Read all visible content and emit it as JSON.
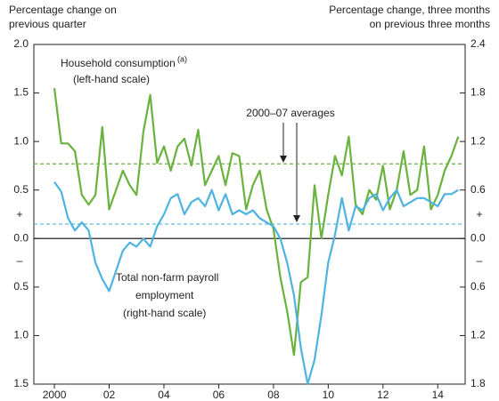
{
  "chart_data": {
    "type": "line",
    "y_axis_title": [
      "Percentage change on",
      "previous quarter"
    ],
    "y2_axis_title": [
      "Percentage change, three months",
      "on previous three months"
    ],
    "x": [
      2000,
      2000.25,
      2000.5,
      2000.75,
      2001,
      2001.25,
      2001.5,
      2001.75,
      2002,
      2002.25,
      2002.5,
      2002.75,
      2003,
      2003.25,
      2003.5,
      2003.75,
      2004,
      2004.25,
      2004.5,
      2004.75,
      2005,
      2005.25,
      2005.5,
      2005.75,
      2006,
      2006.25,
      2006.5,
      2006.75,
      2007,
      2007.25,
      2007.5,
      2007.75,
      2008,
      2008.25,
      2008.5,
      2008.75,
      2009,
      2009.25,
      2009.5,
      2009.75,
      2010,
      2010.25,
      2010.5,
      2010.75,
      2011,
      2011.25,
      2011.5,
      2011.75,
      2012,
      2012.25,
      2012.5,
      2012.75,
      2013,
      2013.25,
      2013.5,
      2013.75,
      2014,
      2014.25,
      2014.5,
      2014.75
    ],
    "series": [
      {
        "name": "Household consumption",
        "color": "#6ab23e",
        "axis": "y",
        "values": [
          1.55,
          0.98,
          0.98,
          0.9,
          0.45,
          0.35,
          0.45,
          1.15,
          0.3,
          0.5,
          0.7,
          0.55,
          0.45,
          1.1,
          1.48,
          0.78,
          0.95,
          0.7,
          0.95,
          1.03,
          0.75,
          1.12,
          0.55,
          0.7,
          0.85,
          0.55,
          0.88,
          0.85,
          0.3,
          0.55,
          0.7,
          0.3,
          0.1,
          -0.4,
          -0.75,
          -1.2,
          -0.45,
          -0.4,
          0.55,
          0.0,
          0.45,
          0.85,
          0.65,
          1.05,
          0.35,
          0.25,
          0.5,
          0.4,
          0.75,
          0.3,
          0.5,
          0.9,
          0.45,
          0.5,
          0.95,
          0.3,
          0.45,
          0.7,
          0.85,
          1.05
        ]
      },
      {
        "name": "Total non-farm payroll employment",
        "color": "#4eb3e0",
        "axis": "y2",
        "values": [
          0.7,
          0.58,
          0.25,
          0.1,
          0.2,
          0.1,
          -0.3,
          -0.5,
          -0.65,
          -0.4,
          -0.15,
          -0.05,
          -0.1,
          0.0,
          -0.1,
          0.15,
          0.3,
          0.5,
          0.55,
          0.3,
          0.45,
          0.5,
          0.4,
          0.6,
          0.35,
          0.55,
          0.3,
          0.35,
          0.3,
          0.35,
          0.25,
          0.2,
          0.15,
          0.0,
          -0.3,
          -0.7,
          -1.35,
          -1.8,
          -1.5,
          -0.95,
          -0.3,
          0.05,
          0.5,
          0.1,
          0.4,
          0.35,
          0.5,
          0.55,
          0.35,
          0.5,
          0.6,
          0.4,
          0.45,
          0.5,
          0.5,
          0.45,
          0.4,
          0.55,
          0.55,
          0.6
        ]
      }
    ],
    "reference_lines": [
      {
        "value": 0.77,
        "axis": "y",
        "color": "#6ab23e"
      },
      {
        "value": 0.18,
        "axis": "y2",
        "color": "#4eb3e0"
      }
    ],
    "xlim": [
      1999.25,
      2015
    ],
    "xticks": [
      {
        "value": 2000,
        "label": "2000"
      },
      {
        "value": 2002,
        "label": "02"
      },
      {
        "value": 2004,
        "label": "04"
      },
      {
        "value": 2006,
        "label": "06"
      },
      {
        "value": 2008,
        "label": "08"
      },
      {
        "value": 2010,
        "label": "10"
      },
      {
        "value": 2012,
        "label": "12"
      },
      {
        "value": 2014,
        "label": "14"
      }
    ],
    "ylim": [
      -1.5,
      2
    ],
    "yticks": [
      {
        "value": -1.5,
        "label": "1.5"
      },
      {
        "value": -1,
        "label": "1.0"
      },
      {
        "value": -0.5,
        "label": "0.5"
      },
      {
        "value": 0,
        "label": "0.0"
      },
      0.5,
      {
        "value": 1,
        "label": "1.0"
      },
      1.5,
      {
        "value": 2,
        "label": "2.0"
      }
    ],
    "y2lim": [
      -1.8,
      2.4
    ],
    "y2ticks": [
      {
        "value": -1.8,
        "label": "1.8"
      },
      {
        "value": -1.2,
        "label": "1.2"
      },
      {
        "value": -0.6,
        "label": "0.6"
      },
      {
        "value": 0,
        "label": "0.0"
      },
      0.6,
      1.2,
      1.8,
      2.4
    ],
    "sign_labels": [
      "+",
      "–"
    ],
    "annotations": {
      "consumption": "Household consumption",
      "consumption_note": "(a)",
      "consumption_scale": "(left-hand scale)",
      "averages": "2000–07 averages",
      "payroll": [
        "Total non-farm payroll",
        "employment",
        "(right-hand scale)"
      ]
    }
  }
}
